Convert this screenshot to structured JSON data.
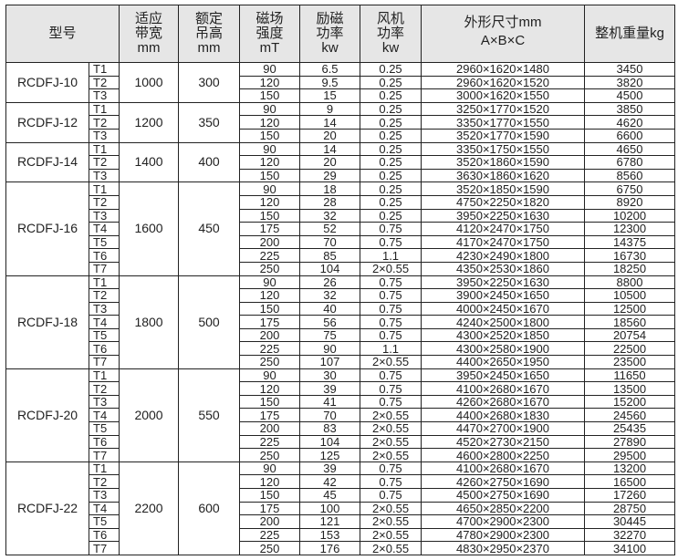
{
  "header": {
    "model": "型号",
    "band_width": [
      "适应",
      "带宽",
      "mm"
    ],
    "lift_height": [
      "额定",
      "吊高",
      "mm"
    ],
    "field_strength": [
      "磁场",
      "强度",
      "mT"
    ],
    "excitation_power": [
      "励磁",
      "功率",
      "kw"
    ],
    "fan_power": [
      "风机",
      "功率",
      "kw"
    ],
    "dimensions": [
      "外形尺寸mm",
      "A×B×C"
    ],
    "weight": "整机重量kg"
  },
  "models": [
    {
      "name": "RCDFJ-10",
      "band_width": "1000",
      "lift_height": "300",
      "variants": [
        [
          "T1",
          "90",
          "6.5",
          "0.25",
          "2960×1620×1480",
          "3450"
        ],
        [
          "T2",
          "120",
          "9.5",
          "0.25",
          "2960×1620×1520",
          "3820"
        ],
        [
          "T3",
          "150",
          "15",
          "0.25",
          "3000×1620×1550",
          "4500"
        ]
      ]
    },
    {
      "name": "RCDFJ-12",
      "band_width": "1200",
      "lift_height": "350",
      "variants": [
        [
          "T1",
          "90",
          "9",
          "0.25",
          "3250×1770×1520",
          "3850"
        ],
        [
          "T2",
          "120",
          "14",
          "0.25",
          "3350×1770×1550",
          "4620"
        ],
        [
          "T3",
          "150",
          "20",
          "0.25",
          "3520×1770×1590",
          "6600"
        ]
      ]
    },
    {
      "name": "RCDFJ-14",
      "band_width": "1400",
      "lift_height": "400",
      "variants": [
        [
          "T1",
          "90",
          "14",
          "0.25",
          "3350×1750×1550",
          "4650"
        ],
        [
          "T2",
          "120",
          "20",
          "0.25",
          "3520×1860×1590",
          "6780"
        ],
        [
          "T3",
          "150",
          "29",
          "0.25",
          "3630×1860×1620",
          "8560"
        ]
      ]
    },
    {
      "name": "RCDFJ-16",
      "band_width": "1600",
      "lift_height": "450",
      "variants": [
        [
          "T1",
          "90",
          "18",
          "0.25",
          "3520×1850×1590",
          "6750"
        ],
        [
          "T2",
          "120",
          "28",
          "0.25",
          "4750×2250×1820",
          "8920"
        ],
        [
          "T3",
          "150",
          "32",
          "0.25",
          "3950×2250×1630",
          "10200"
        ],
        [
          "T4",
          "175",
          "52",
          "0.75",
          "4120×2470×1750",
          "12300"
        ],
        [
          "T5",
          "200",
          "70",
          "0.75",
          "4170×2470×1750",
          "14375"
        ],
        [
          "T6",
          "225",
          "85",
          "1.1",
          "4230×2490×1800",
          "16730"
        ],
        [
          "T7",
          "250",
          "104",
          "2×0.55",
          "4350×2530×1860",
          "18250"
        ]
      ]
    },
    {
      "name": "RCDFJ-18",
      "band_width": "1800",
      "lift_height": "500",
      "variants": [
        [
          "T1",
          "90",
          "26",
          "0.75",
          "3950×2250×1630",
          "8800"
        ],
        [
          "T2",
          "120",
          "32",
          "0.75",
          "3900×2450×1650",
          "10500"
        ],
        [
          "T3",
          "150",
          "40",
          "0.75",
          "4000×2450×1670",
          "12500"
        ],
        [
          "T4",
          "175",
          "56",
          "0.75",
          "4240×2500×1800",
          "18560"
        ],
        [
          "T5",
          "200",
          "75",
          "0.75",
          "4300×2520×1850",
          "20754"
        ],
        [
          "T6",
          "225",
          "90",
          "1.1",
          "4300×2580×1900",
          "22500"
        ],
        [
          "T7",
          "250",
          "107",
          "2×0.55",
          "4400×2650×1950",
          "23500"
        ]
      ]
    },
    {
      "name": "RCDFJ-20",
      "band_width": "2000",
      "lift_height": "550",
      "variants": [
        [
          "T1",
          "90",
          "30",
          "0.75",
          "3950×2450×1650",
          "11650"
        ],
        [
          "T2",
          "120",
          "39",
          "0.75",
          "4100×2680×1670",
          "13500"
        ],
        [
          "T3",
          "150",
          "41",
          "0.75",
          "4260×2680×1670",
          "15200"
        ],
        [
          "T4",
          "175",
          "70",
          "2×0.55",
          "4400×2680×1830",
          "24560"
        ],
        [
          "T5",
          "200",
          "83",
          "2×0.55",
          "4470×2700×1900",
          "25435"
        ],
        [
          "T6",
          "225",
          "104",
          "2×0.55",
          "4520×2730×2150",
          "27890"
        ],
        [
          "T7",
          "250",
          "125",
          "2×0.55",
          "4600×2800×2250",
          "29500"
        ]
      ]
    },
    {
      "name": "RCDFJ-22",
      "band_width": "2200",
      "lift_height": "600",
      "variants": [
        [
          "T1",
          "90",
          "39",
          "0.75",
          "4100×2680×1670",
          "13200"
        ],
        [
          "T2",
          "120",
          "42",
          "0.75",
          "4260×2750×1690",
          "16500"
        ],
        [
          "T3",
          "150",
          "45",
          "0.75",
          "4500×2750×1690",
          "17260"
        ],
        [
          "T4",
          "175",
          "100",
          "2×0.55",
          "4650×2850×2200",
          "28750"
        ],
        [
          "T5",
          "200",
          "121",
          "2×0.55",
          "4700×2900×2300",
          "30445"
        ],
        [
          "T6",
          "225",
          "153",
          "2×0.55",
          "4780×2900×2300",
          "32270"
        ],
        [
          "T7",
          "250",
          "176",
          "2×0.55",
          "4830×2950×2370",
          "34100"
        ]
      ]
    }
  ]
}
